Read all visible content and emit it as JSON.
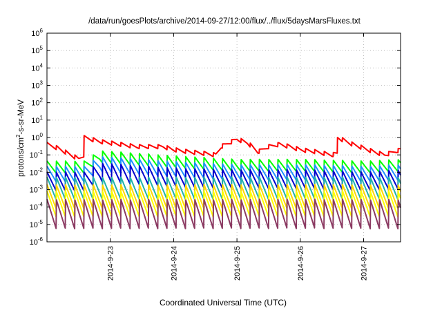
{
  "chart_data": {
    "type": "line",
    "title": "/data/run/goesPlots/archive/2014-09-27/12:00/flux/../flux/5daysMarsFluxes.txt",
    "xlabel": "Coordinated Universal Time (UTC)",
    "ylabel_prefix": "protons/cm",
    "ylabel_sup": "2",
    "ylabel_suffix": "-s-sr-MeV",
    "yscale": "log",
    "ylim": [
      1e-06,
      1000000.0
    ],
    "xlim": [
      "2014-09-22T00:00",
      "2014-09-27T14:00"
    ],
    "y_ticks": [
      {
        "v": -6,
        "base": "10",
        "exp": "-6"
      },
      {
        "v": -5,
        "base": "10",
        "exp": "-5"
      },
      {
        "v": -4,
        "base": "10",
        "exp": "-4"
      },
      {
        "v": -3,
        "base": "10",
        "exp": "-3"
      },
      {
        "v": -2,
        "base": "10",
        "exp": "-2"
      },
      {
        "v": -1,
        "base": "10",
        "exp": "-1"
      },
      {
        "v": 0,
        "base": "10",
        "exp": "0"
      },
      {
        "v": 1,
        "base": "10",
        "exp": "1"
      },
      {
        "v": 2,
        "base": "10",
        "exp": "2"
      },
      {
        "v": 3,
        "base": "10",
        "exp": "3"
      },
      {
        "v": 4,
        "base": "10",
        "exp": "4"
      },
      {
        "v": 5,
        "base": "10",
        "exp": "5"
      },
      {
        "v": 6,
        "base": "10",
        "exp": "6"
      }
    ],
    "x_ticks": [
      {
        "t": "2014-09-23T00:00",
        "label": "2014-9-23"
      },
      {
        "t": "2014-09-24T00:00",
        "label": "2014-9-24"
      },
      {
        "t": "2014-09-25T00:00",
        "label": "2014-9-25"
      },
      {
        "t": "2014-09-26T00:00",
        "label": "2014-9-26"
      },
      {
        "t": "2014-09-27T00:00",
        "label": "2014-9-27"
      }
    ],
    "grid": true,
    "sawtooth_period_hours": 3.5,
    "series": [
      {
        "color": "#ff0000",
        "x": [
          "2014-09-22T00:00",
          "2014-09-22T04:00",
          "2014-09-22T08:00",
          "2014-09-22T12:00",
          "2014-09-22T14:00",
          "2014-09-22T14:01",
          "2014-09-22T20:00",
          "2014-09-23T04:00",
          "2014-09-23T10:00",
          "2014-09-23T18:00",
          "2014-09-23T20:00",
          "2014-09-24T00:00",
          "2014-09-24T06:00",
          "2014-09-24T12:00",
          "2014-09-24T16:00",
          "2014-09-24T18:00",
          "2014-09-25T00:00",
          "2014-09-25T04:00",
          "2014-09-25T08:00",
          "2014-09-25T12:00",
          "2014-09-25T16:00",
          "2014-09-25T20:00",
          "2014-09-26T00:00",
          "2014-09-26T06:00",
          "2014-09-26T12:00",
          "2014-09-26T14:00",
          "2014-09-26T14:01",
          "2014-09-26T20:00",
          "2014-09-27T04:00",
          "2014-09-27T08:00",
          "2014-09-27T14:00"
        ],
        "values": [
          0.4,
          0.25,
          0.12,
          0.06,
          0.1,
          1.0,
          0.6,
          0.4,
          0.3,
          0.3,
          0.3,
          0.2,
          0.15,
          0.12,
          0.1,
          0.3,
          0.8,
          0.5,
          0.15,
          0.3,
          0.4,
          0.3,
          0.2,
          0.15,
          0.1,
          0.12,
          1.0,
          0.4,
          0.15,
          0.1,
          0.2
        ],
        "ripple": 0.12
      },
      {
        "color": "#00ff00",
        "x": [
          "2014-09-22T00:00",
          "2014-09-22T14:00",
          "2014-09-22T20:00",
          "2014-09-24T00:00",
          "2014-09-25T00:00",
          "2014-09-26T00:00",
          "2014-09-27T00:00",
          "2014-09-27T14:00"
        ],
        "values": [
          0.02,
          0.02,
          0.08,
          0.04,
          0.025,
          0.025,
          0.02,
          0.025
        ],
        "ripple": 0.35
      },
      {
        "color": "#1e90ff",
        "x": [
          "2014-09-22T00:00",
          "2014-09-22T14:00",
          "2014-09-22T20:00",
          "2014-09-24T00:00",
          "2014-09-25T00:00",
          "2014-09-26T00:00",
          "2014-09-27T00:00",
          "2014-09-27T14:00"
        ],
        "values": [
          0.008,
          0.008,
          0.03,
          0.015,
          0.01,
          0.01,
          0.008,
          0.01
        ],
        "ripple": 0.45
      },
      {
        "color": "#0000cd",
        "x": [
          "2014-09-22T00:00",
          "2014-09-22T14:00",
          "2014-09-22T20:00",
          "2014-09-24T00:00",
          "2014-09-25T00:00",
          "2014-09-26T00:00",
          "2014-09-27T00:00",
          "2014-09-27T14:00"
        ],
        "values": [
          0.003,
          0.003,
          0.01,
          0.005,
          0.004,
          0.004,
          0.003,
          0.004
        ],
        "ripple": 0.55
      },
      {
        "color": "#20b2aa",
        "x": [
          "2014-09-22T00:00",
          "2014-09-27T14:00"
        ],
        "values": [
          0.0012,
          0.0012
        ],
        "ripple": 0.65
      },
      {
        "color": "#ffd700",
        "x": [
          "2014-09-22T00:00",
          "2014-09-27T14:00"
        ],
        "values": [
          0.0004,
          0.0004
        ],
        "ripple": 0.7
      },
      {
        "color": "#ffff00",
        "x": [
          "2014-09-22T00:00",
          "2014-09-27T14:00"
        ],
        "values": [
          0.00015,
          0.00015
        ],
        "ripple": 0.75
      },
      {
        "color": "#8b3a62",
        "x": [
          "2014-09-22T00:00",
          "2014-09-27T14:00"
        ],
        "values": [
          4e-05,
          4e-05
        ],
        "ripple": 0.85
      }
    ]
  }
}
